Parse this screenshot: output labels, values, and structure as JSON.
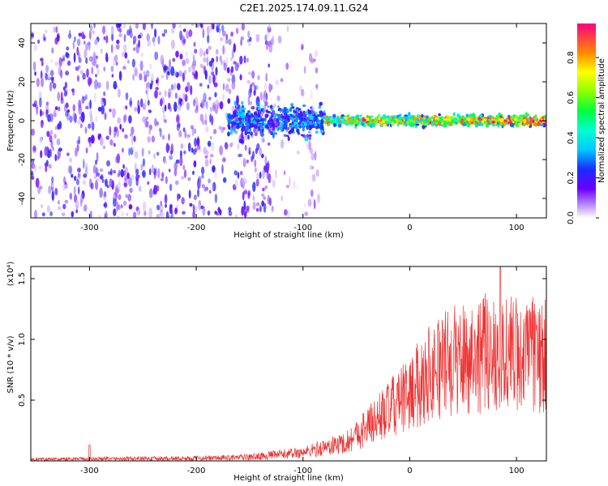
{
  "figure_title": "C2E1.2025.174.09.11.G24",
  "chart_data": [
    {
      "type": "heatmap",
      "xlabel": "Height of straight line (km)",
      "ylabel": "Frequency (Hz)",
      "xlim": [
        -355,
        128
      ],
      "ylim": [
        -50,
        50
      ],
      "x_ticks": [
        -300,
        -200,
        -100,
        0,
        100
      ],
      "y_ticks": [
        -40,
        -20,
        0,
        20,
        40
      ],
      "colorbar": {
        "label": "Normalized spectral amplitude",
        "range": [
          0,
          0.97
        ],
        "ticks": [
          0.0,
          0.2,
          0.4,
          0.6,
          0.8
        ],
        "tick_labels": [
          "0.0",
          "0.2",
          "0.4",
          "0.6",
          "0.8"
        ]
      },
      "structure": [
        {
          "region": "scattered noise",
          "x_range": [
            -355,
            -130
          ],
          "freq_range": [
            -50,
            50
          ],
          "amplitude_range": [
            0.02,
            0.25
          ]
        },
        {
          "region": "sparse noise",
          "x_range": [
            -130,
            -85
          ],
          "freq_range": [
            -50,
            50
          ],
          "amplitude_range": [
            0.01,
            0.12
          ]
        },
        {
          "region": "spread band",
          "x_range": [
            -170,
            -80
          ],
          "freq_center": 0,
          "freq_halfwidth": 12,
          "amplitude_range": [
            0.1,
            0.4
          ]
        },
        {
          "region": "narrow band",
          "x_range": [
            -80,
            128
          ],
          "freq_center": 0,
          "freq_halfwidth": 4,
          "amplitude_range": [
            0.3,
            0.97
          ]
        }
      ]
    },
    {
      "type": "line",
      "xlabel": "Height of straight line (km)",
      "ylabel": "SNR (10 * v/v)",
      "scale_label": "(x10⁴)",
      "xlim": [
        -355,
        128
      ],
      "ylim": [
        0,
        1.6
      ],
      "x_ticks": [
        -300,
        -200,
        -100,
        0,
        100
      ],
      "y_ticks": [
        0.5,
        1.0,
        1.5
      ],
      "y_tick_labels": [
        "0.5",
        "1.0",
        "1.5"
      ],
      "color": "#ee3333",
      "trend": {
        "x": [
          -355,
          -300,
          -200,
          -150,
          -100,
          -60,
          -30,
          0,
          20,
          50,
          80,
          100,
          128
        ],
        "y": [
          0.01,
          0.015,
          0.02,
          0.03,
          0.07,
          0.15,
          0.35,
          0.55,
          0.75,
          0.85,
          0.9,
          0.88,
          0.85
        ]
      },
      "peak": {
        "x": 85,
        "y": 1.6
      }
    }
  ]
}
